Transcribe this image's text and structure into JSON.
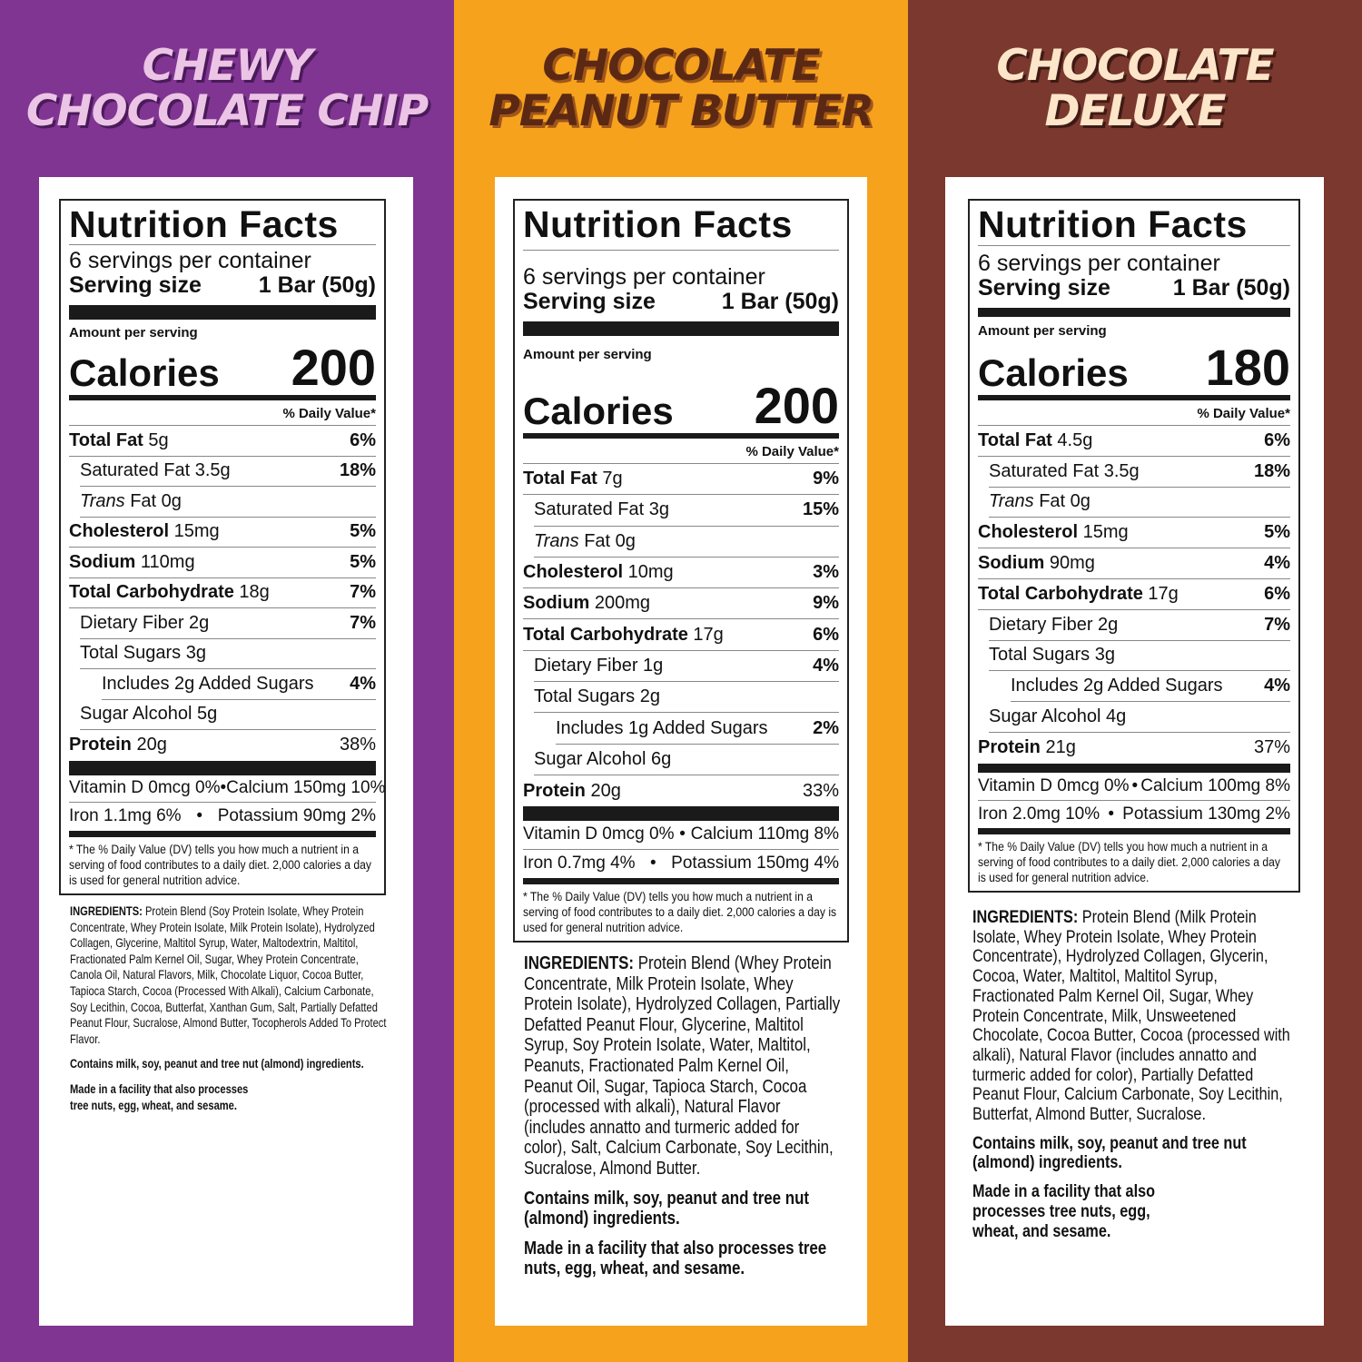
{
  "colors": {
    "purple": "#7f3591",
    "orange": "#f6a21d",
    "brown": "#7a382e",
    "pink_text": "#ecc4e6",
    "dark_text": "#5b2814",
    "cream_text": "#fde5c9"
  },
  "products": [
    {
      "name_line1": "CHEWY",
      "name_line2": "CHOCOLATE CHIP",
      "facts": {
        "title": "Nutrition Facts",
        "servings": "6 servings per container",
        "serving_size_label": "Serving size",
        "serving_size": "1 Bar (50g)",
        "amount_label": "Amount per serving",
        "calories_label": "Calories",
        "calories": "200",
        "dv_header": "% Daily Value*",
        "rows": [
          {
            "bold": "Total Fat",
            "text": " 5g",
            "dv": "6%",
            "indent": 0
          },
          {
            "text": "Saturated Fat 3.5g",
            "dv": "18%",
            "indent": 1
          },
          {
            "italic": "Trans",
            "text": " Fat 0g",
            "dv": "",
            "indent": 1
          },
          {
            "bold": "Cholesterol",
            "text": " 15mg",
            "dv": "5%",
            "indent": 0
          },
          {
            "bold": "Sodium",
            "text": " 110mg",
            "dv": "5%",
            "indent": 0
          },
          {
            "bold": "Total Carbohydrate",
            "text": " 18g",
            "dv": "7%",
            "indent": 0
          },
          {
            "text": "Dietary Fiber 2g",
            "dv": "7%",
            "indent": 1
          },
          {
            "text": "Total Sugars 3g",
            "dv": "",
            "indent": 1
          },
          {
            "text": "Includes 2g Added Sugars",
            "dv": "4%",
            "indent": 2
          },
          {
            "text": "Sugar Alcohol 5g",
            "dv": "",
            "indent": 1
          },
          {
            "bold": "Protein",
            "text": " 20g",
            "dv": "38%",
            "indent": 0
          }
        ],
        "vitamins": [
          [
            "Vitamin D 0mcg 0%",
            "•",
            "Calcium 150mg 10%"
          ],
          [
            "Iron 1.1mg 6%",
            "•",
            "Potassium 90mg 2%"
          ]
        ],
        "footnote": "* The % Daily Value (DV) tells you how much a nutrient in a serving of food contributes to a daily diet. 2,000 calories a day is used for general nutrition advice."
      },
      "ingredients_label": "INGREDIENTS:",
      "ingredients": " Protein Blend (Soy Protein Isolate, Whey Protein Concentrate, Whey Protein Isolate, Milk Protein Isolate), Hydrolyzed Collagen, Glycerine, Maltitol Syrup, Water, Maltodextrin, Maltitol, Fractionated Palm Kernel Oil, Sugar, Whey Protein Concentrate, Canola Oil, Natural Flavors, Milk, Chocolate Liquor, Cocoa Butter, Tapioca Starch, Cocoa (Processed With Alkali), Calcium Carbonate, Soy Lecithin, Cocoa, Butterfat, Xanthan Gum, Salt, Partially Defatted Peanut Flour, Sucralose, Almond Butter, Tocopherols Added To Protect Flavor.",
      "contains": "Contains milk, soy, peanut and tree nut (almond) ingredients.",
      "facility": "Made in a facility that also processes tree nuts, egg, wheat, and sesame."
    },
    {
      "name_line1": "CHOCOLATE",
      "name_line2": "PEANUT BUTTER",
      "facts": {
        "title": "Nutrition Facts",
        "servings": "6 servings per container",
        "serving_size_label": "Serving size",
        "serving_size": "1 Bar (50g)",
        "amount_label": "Amount per serving",
        "calories_label": "Calories",
        "calories": "200",
        "dv_header": "% Daily Value*",
        "rows": [
          {
            "bold": "Total Fat",
            "text": " 7g",
            "dv": "9%",
            "indent": 0
          },
          {
            "text": "Saturated Fat 3g",
            "dv": "15%",
            "indent": 1
          },
          {
            "italic": "Trans",
            "text": " Fat 0g",
            "dv": "",
            "indent": 1
          },
          {
            "bold": "Cholesterol",
            "text": " 10mg",
            "dv": "3%",
            "indent": 0
          },
          {
            "bold": "Sodium",
            "text": " 200mg",
            "dv": "9%",
            "indent": 0
          },
          {
            "bold": "Total Carbohydrate",
            "text": " 17g",
            "dv": "6%",
            "indent": 0
          },
          {
            "text": "Dietary Fiber 1g",
            "dv": "4%",
            "indent": 1
          },
          {
            "text": "Total Sugars 2g",
            "dv": "",
            "indent": 1
          },
          {
            "text": "Includes 1g Added Sugars",
            "dv": "2%",
            "indent": 2
          },
          {
            "text": "Sugar Alcohol 6g",
            "dv": "",
            "indent": 1
          },
          {
            "bold": "Protein",
            "text": " 20g",
            "dv": "33%",
            "indent": 0
          }
        ],
        "vitamins": [
          [
            "Vitamin D 0mcg 0%",
            "•",
            "Calcium 110mg 8%"
          ],
          [
            "Iron 0.7mg 4%",
            "•",
            "Potassium 150mg 4%"
          ]
        ],
        "footnote": "* The % Daily Value (DV) tells you how much a nutrient in a serving of food contributes to a daily diet. 2,000 calories a day is used for general nutrition advice."
      },
      "ingredients_label": "INGREDIENTS:",
      "ingredients": " Protein Blend (Whey Protein Concentrate, Milk Protein Isolate, Whey Protein Isolate), Hydrolyzed Collagen, Partially Defatted Peanut Flour, Glycerine, Maltitol Syrup, Soy Protein Isolate, Water, Maltitol, Peanuts, Fractionated Palm Kernel Oil, Peanut Oil, Sugar, Tapioca Starch, Cocoa (processed with alkali), Natural Flavor (includes annatto and turmeric added for color), Salt, Calcium Carbonate, Soy Lecithin, Sucralose, Almond Butter.",
      "contains": "Contains milk, soy, peanut and tree nut (almond) ingredients.",
      "facility": "Made in a facility that also processes tree nuts, egg, wheat, and sesame."
    },
    {
      "name_line1": "CHOCOLATE",
      "name_line2": "DELUXE",
      "facts": {
        "title": "Nutrition Facts",
        "servings": "6 servings per container",
        "serving_size_label": "Serving size",
        "serving_size": "1 Bar (50g)",
        "amount_label": "Amount per serving",
        "calories_label": "Calories",
        "calories": "180",
        "dv_header": "% Daily Value*",
        "rows": [
          {
            "bold": "Total Fat",
            "text": " 4.5g",
            "dv": "6%",
            "indent": 0
          },
          {
            "text": "Saturated Fat 3.5g",
            "dv": "18%",
            "indent": 1
          },
          {
            "italic": "Trans",
            "text": " Fat 0g",
            "dv": "",
            "indent": 1
          },
          {
            "bold": "Cholesterol",
            "text": " 15mg",
            "dv": "5%",
            "indent": 0
          },
          {
            "bold": "Sodium",
            "text": " 90mg",
            "dv": "4%",
            "indent": 0
          },
          {
            "bold": "Total Carbohydrate",
            "text": " 17g",
            "dv": "6%",
            "indent": 0
          },
          {
            "text": "Dietary Fiber 2g",
            "dv": "7%",
            "indent": 1
          },
          {
            "text": "Total Sugars 3g",
            "dv": "",
            "indent": 1
          },
          {
            "text": "Includes 2g Added Sugars",
            "dv": "4%",
            "indent": 2
          },
          {
            "text": "Sugar Alcohol 4g",
            "dv": "",
            "indent": 1
          },
          {
            "bold": "Protein",
            "text": " 21g",
            "dv": "37%",
            "indent": 0
          }
        ],
        "vitamins": [
          [
            "Vitamin D 0mcg 0%",
            "•",
            "Calcium 100mg 8%"
          ],
          [
            "Iron 2.0mg 10%",
            "•",
            "Potassium 130mg 2%"
          ]
        ],
        "footnote": "* The % Daily Value (DV) tells you how much a nutrient in a serving of food contributes to a daily diet. 2,000 calories a day is used for general nutrition advice."
      },
      "ingredients_label": "INGREDIENTS:",
      "ingredients": " Protein Blend (Milk Protein Isolate, Whey Protein Isolate, Whey Protein Concentrate), Hydrolyzed Collagen, Glycerin, Cocoa, Water, Maltitol, Maltitol Syrup, Fractionated Palm Kernel Oil, Sugar, Whey Protein Concentrate, Milk, Unsweetened Chocolate, Cocoa Butter, Cocoa (processed with alkali), Natural Flavor (includes annatto and turmeric added for color), Partially Defatted Peanut Flour, Calcium Carbonate, Soy Lecithin, Butterfat, Almond Butter, Sucralose.",
      "contains": "Contains milk, soy, peanut and tree nut (almond) ingredients.",
      "facility": "Made in a facility that also processes tree nuts, egg, wheat, and sesame."
    }
  ]
}
